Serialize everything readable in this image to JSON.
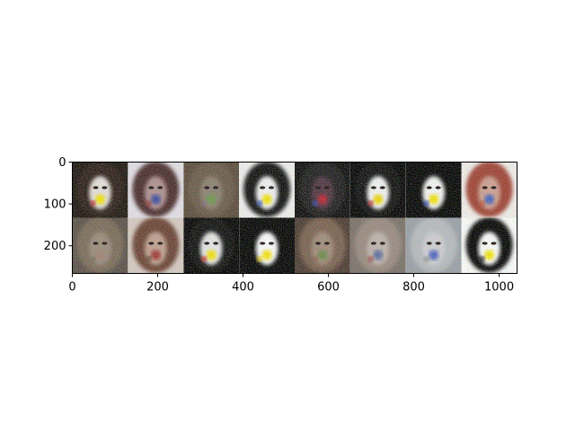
{
  "figure": {
    "x_ticks": [
      {
        "value": 0,
        "label": "0"
      },
      {
        "value": 200,
        "label": "200"
      },
      {
        "value": 400,
        "label": "400"
      },
      {
        "value": 600,
        "label": "600"
      },
      {
        "value": 800,
        "label": "800"
      },
      {
        "value": 1000,
        "label": "1000"
      }
    ],
    "y_ticks": [
      {
        "value": 0,
        "label": "0"
      },
      {
        "value": 100,
        "label": "100"
      },
      {
        "value": 200,
        "label": "200"
      }
    ],
    "x_range": [
      0,
      1042
    ],
    "y_range": [
      0,
      266
    ],
    "grid": {
      "rows": 2,
      "cols": 8
    },
    "tiles": [
      {
        "bg": "#1a120c",
        "hair": "#2a1c12",
        "skin": "#e8e2dc",
        "accent": "#f5e600",
        "accent2": "#c0201a"
      },
      {
        "bg": "#e6e2ea",
        "hair": "#4a2a2a",
        "skin": "#b09090",
        "accent": "#3a4aa0",
        "accent2": "#9a3030"
      },
      {
        "bg": "#5a4a3a",
        "hair": "#6a5a48",
        "skin": "#8a8070",
        "accent": "#6a9a4a",
        "accent2": "#8a6a8a"
      },
      {
        "bg": "#f2f2f2",
        "hair": "#0e0e0e",
        "skin": "#f4f4f4",
        "accent": "#f5e600",
        "accent2": "#3050c0"
      },
      {
        "bg": "#0a0a0a",
        "hair": "#1a1a1a",
        "skin": "#503040",
        "accent": "#c02030",
        "accent2": "#3050c0"
      },
      {
        "bg": "#000000",
        "hair": "#0a0a0a",
        "skin": "#f6f6f6",
        "accent": "#f0d800",
        "accent2": "#c02020"
      },
      {
        "bg": "#000000",
        "hair": "#050505",
        "skin": "#f8f8f8",
        "accent": "#f5e600",
        "accent2": "#2040b0"
      },
      {
        "bg": "#f4f0ee",
        "hair": "#a04030",
        "skin": "#d0a090",
        "accent": "#4060c0",
        "accent2": "#c05030"
      },
      {
        "bg": "#5a5048",
        "hair": "#7a6a58",
        "skin": "#9a8a7a",
        "accent": "#a08070",
        "accent2": "#6a6a5a"
      },
      {
        "bg": "#d8ccc4",
        "hair": "#6a4030",
        "skin": "#c0a090",
        "accent": "#a03030",
        "accent2": "#5a3a2a"
      },
      {
        "bg": "#000000",
        "hair": "#0a0a0a",
        "skin": "#e8e8e8",
        "accent": "#f5e600",
        "accent2": "#d02020"
      },
      {
        "bg": "#000000",
        "hair": "#000000",
        "skin": "#ffffff",
        "accent": "#f5e600",
        "accent2": "#f0d000"
      },
      {
        "bg": "#4a3a30",
        "hair": "#7a6050",
        "skin": "#a08a78",
        "accent": "#6a8a4a",
        "accent2": "#8a5a4a"
      },
      {
        "bg": "#7a7068",
        "hair": "#9a8a80",
        "skin": "#c0b4ac",
        "accent": "#5a6aa0",
        "accent2": "#a04040"
      },
      {
        "bg": "#9aa0a8",
        "hair": "#b8bcc0",
        "skin": "#d0d0d4",
        "accent": "#4a60c0",
        "accent2": "#8a8a8a"
      },
      {
        "bg": "#ffffff",
        "hair": "#000000",
        "skin": "#ffffff",
        "accent": "#f5e600",
        "accent2": "#101010"
      }
    ]
  }
}
